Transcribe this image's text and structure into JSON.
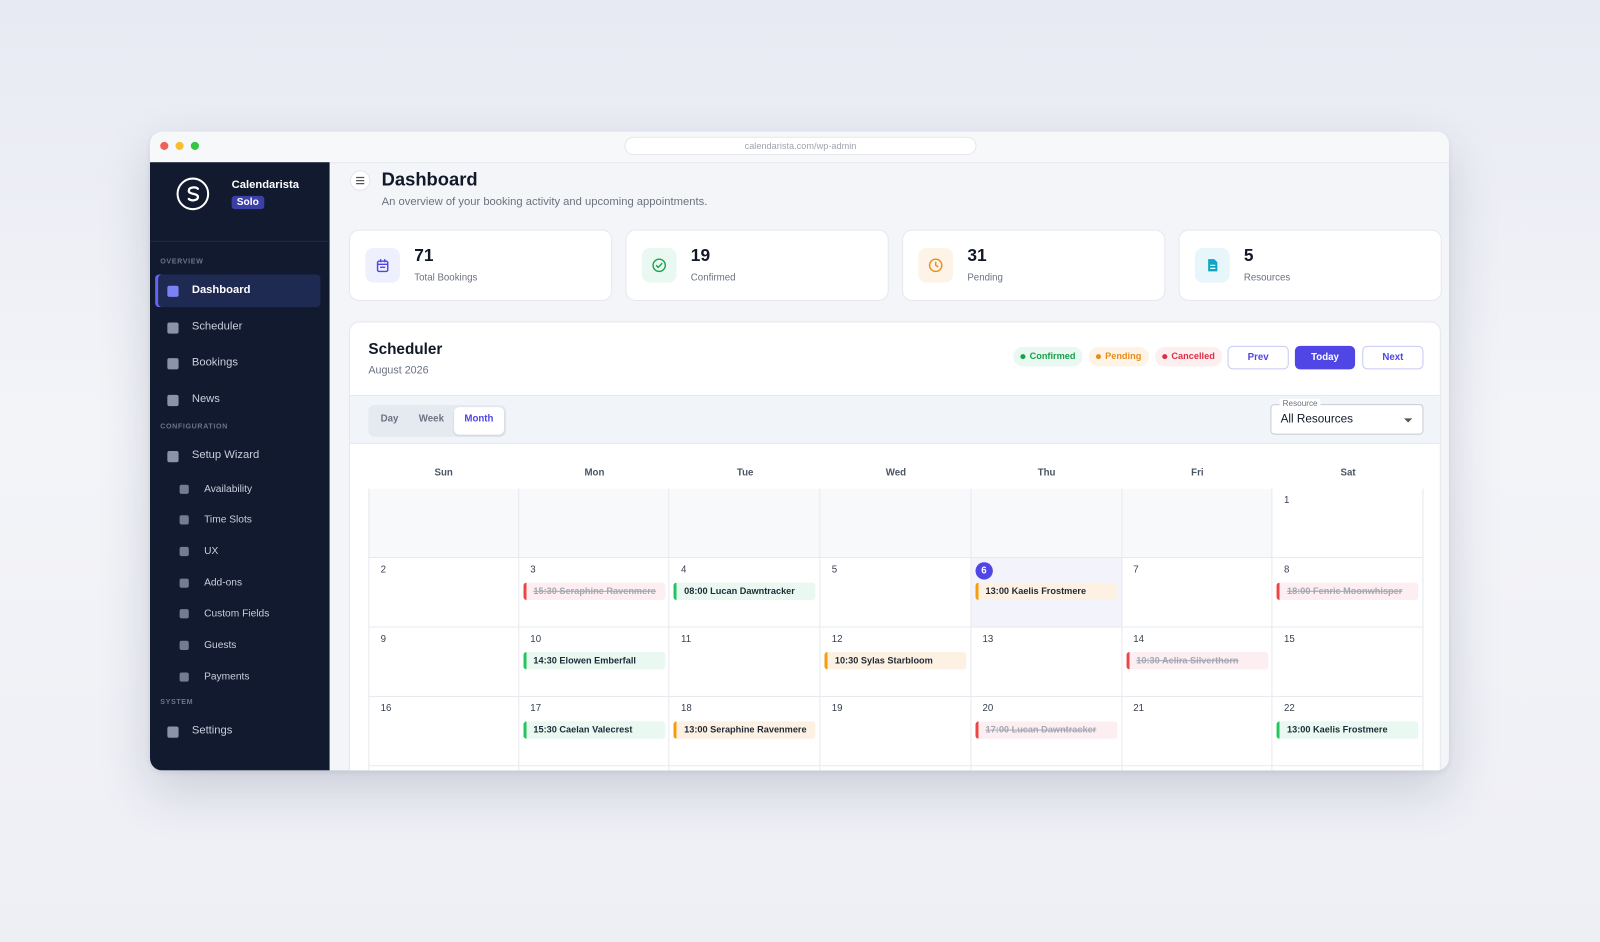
{
  "browser": {
    "url": "calendarista.com/wp-admin"
  },
  "sidebar": {
    "brand": "Calendarista",
    "badge": "Solo",
    "sections": [
      {
        "title": "OVERVIEW",
        "items": [
          {
            "label": "Dashboard",
            "active": true
          },
          {
            "label": "Scheduler"
          },
          {
            "label": "Bookings"
          },
          {
            "label": "News"
          }
        ]
      },
      {
        "title": "CONFIGURATION",
        "items": [
          {
            "label": "Setup Wizard"
          },
          {
            "label": "Availability",
            "sub": true
          },
          {
            "label": "Time Slots",
            "sub": true
          },
          {
            "label": "UX",
            "sub": true
          },
          {
            "label": "Add-ons",
            "sub": true
          },
          {
            "label": "Custom Fields",
            "sub": true
          },
          {
            "label": "Guests",
            "sub": true
          },
          {
            "label": "Payments",
            "sub": true
          }
        ]
      },
      {
        "title": "SYSTEM",
        "items": [
          {
            "label": "Settings"
          }
        ]
      }
    ]
  },
  "header": {
    "title": "Dashboard",
    "subtitle": "An overview of your booking activity and upcoming appointments."
  },
  "stats": [
    {
      "value": 71,
      "label": "Total Bookings"
    },
    {
      "value": 19,
      "label": "Confirmed"
    },
    {
      "value": 31,
      "label": "Pending"
    },
    {
      "value": 5,
      "label": "Resources"
    }
  ],
  "scheduler": {
    "title": "Scheduler",
    "period": "August 2026",
    "legend": [
      {
        "label": "Confirmed",
        "status": "confirmed"
      },
      {
        "label": "Pending",
        "status": "pending"
      },
      {
        "label": "Cancelled",
        "status": "cancelled"
      }
    ],
    "buttons": {
      "prev": "Prev",
      "today": "Today",
      "next": "Next"
    },
    "views": [
      {
        "label": "Day"
      },
      {
        "label": "Week"
      },
      {
        "label": "Month",
        "active": true
      }
    ],
    "resource_label": "Resource",
    "resource_value": "All Resources",
    "weekdays": [
      "Sun",
      "Mon",
      "Tue",
      "Wed",
      "Thu",
      "Fri",
      "Sat"
    ],
    "weeks": [
      [
        null,
        null,
        null,
        null,
        null,
        null,
        {
          "day": 1
        }
      ],
      [
        {
          "day": 2
        },
        {
          "day": 3,
          "events": [
            {
              "text": "15:30 Seraphine Ravenmere",
              "status": "cancelled"
            }
          ]
        },
        {
          "day": 4,
          "events": [
            {
              "text": "08:00 Lucan Dawntracker",
              "status": "confirmed"
            }
          ]
        },
        {
          "day": 5
        },
        {
          "day": 6,
          "today": true,
          "events": [
            {
              "text": "13:00 Kaelis Frostmere",
              "status": "pending"
            }
          ]
        },
        {
          "day": 7
        },
        {
          "day": 8,
          "events": [
            {
              "text": "18:00 Fenric Moonwhisper",
              "status": "cancelled"
            }
          ]
        }
      ],
      [
        {
          "day": 9
        },
        {
          "day": 10,
          "events": [
            {
              "text": "14:30 Elowen Emberfall",
              "status": "confirmed"
            }
          ]
        },
        {
          "day": 11
        },
        {
          "day": 12,
          "events": [
            {
              "text": "10:30 Sylas Starbloom",
              "status": "pending"
            }
          ]
        },
        {
          "day": 13
        },
        {
          "day": 14,
          "events": [
            {
              "text": "10:30 Aelira Silverthorn",
              "status": "cancelled"
            }
          ]
        },
        {
          "day": 15
        }
      ],
      [
        {
          "day": 16
        },
        {
          "day": 17,
          "events": [
            {
              "text": "15:30 Caelan Valecrest",
              "status": "confirmed"
            }
          ]
        },
        {
          "day": 18,
          "events": [
            {
              "text": "13:00 Seraphine Ravenmere",
              "status": "pending"
            }
          ]
        },
        {
          "day": 19
        },
        {
          "day": 20,
          "events": [
            {
              "text": "17:00 Lucan Dawntracker",
              "status": "cancelled"
            }
          ]
        },
        {
          "day": 21
        },
        {
          "day": 22,
          "events": [
            {
              "text": "13:00 Kaelis Frostmere",
              "status": "confirmed"
            }
          ]
        }
      ]
    ]
  }
}
